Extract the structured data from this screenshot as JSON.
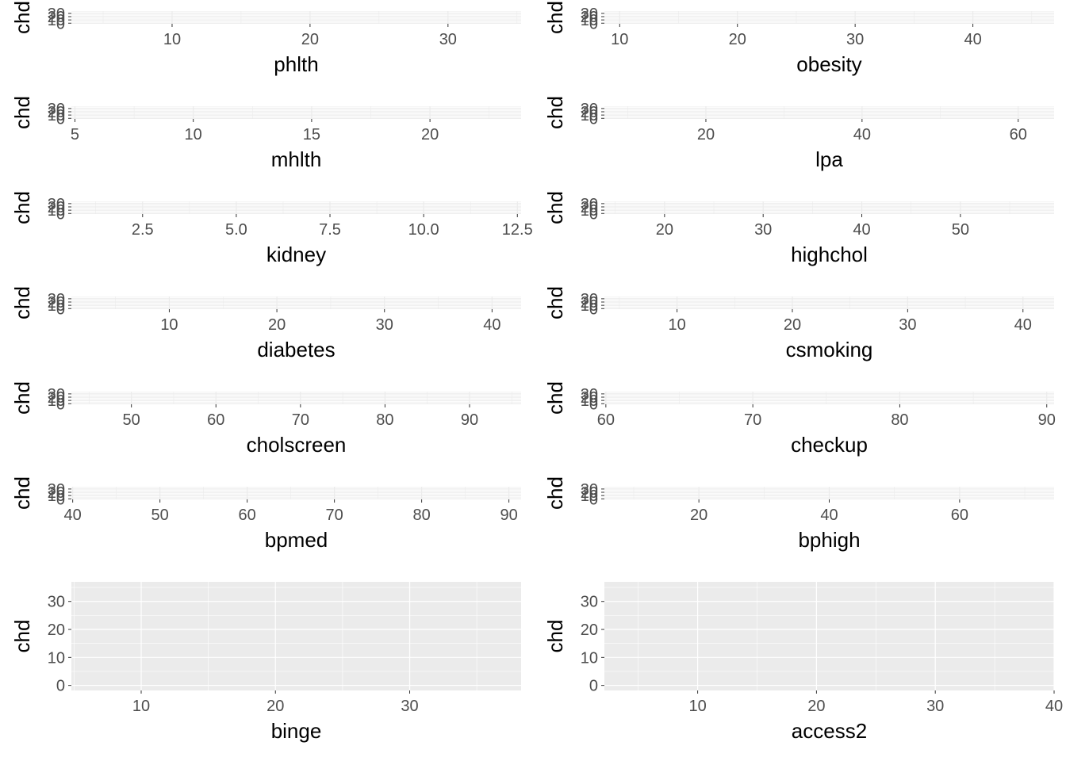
{
  "chart_data": [
    {
      "type": "scatter",
      "xlabel": "phlth",
      "ylabel": "chd",
      "xticks": [
        10,
        20,
        30
      ],
      "xlim": [
        2.7,
        35.3
      ],
      "yticks": [
        0,
        10,
        20,
        30
      ],
      "ylim": [
        -1.8,
        37
      ],
      "panel_fill": "#ffffff",
      "points": []
    },
    {
      "type": "scatter",
      "xlabel": "obesity",
      "ylabel": "chd",
      "xticks": [
        10,
        20,
        30,
        40
      ],
      "xlim": [
        8.7,
        46.9
      ],
      "yticks": [
        0,
        10,
        20,
        30
      ],
      "ylim": [
        -1.8,
        37
      ],
      "panel_fill": "#ffffff",
      "points": []
    },
    {
      "type": "scatter",
      "xlabel": "mhlth",
      "ylabel": "chd",
      "xticks": [
        5,
        10,
        15,
        20
      ],
      "xlim": [
        4.85,
        23.85
      ],
      "yticks": [
        0,
        10,
        20,
        30
      ],
      "ylim": [
        -1.8,
        37
      ],
      "panel_fill": "#ffffff",
      "points": []
    },
    {
      "type": "scatter",
      "xlabel": "lpa",
      "ylabel": "chd",
      "xticks": [
        20,
        40,
        60
      ],
      "xlim": [
        7,
        64.6
      ],
      "yticks": [
        0,
        10,
        20,
        30
      ],
      "ylim": [
        -1.8,
        37
      ],
      "panel_fill": "#ffffff",
      "points": []
    },
    {
      "type": "scatter",
      "xlabel": "kidney",
      "ylabel": "chd",
      "xticks": [
        "2.5",
        "5.0",
        "7.5",
        "10.0",
        "12.5"
      ],
      "xtick_values": [
        2.5,
        5.0,
        7.5,
        10.0,
        12.5
      ],
      "xlim": [
        0.6,
        12.6
      ],
      "yticks": [
        0,
        10,
        20,
        30
      ],
      "ylim": [
        -1.8,
        37
      ],
      "panel_fill": "#ffffff",
      "points": []
    },
    {
      "type": "scatter",
      "xlabel": "highchol",
      "ylabel": "chd",
      "xticks": [
        20,
        30,
        40,
        50
      ],
      "xlim": [
        13.9,
        59.5
      ],
      "yticks": [
        0,
        10,
        20,
        30
      ],
      "ylim": [
        -1.8,
        37
      ],
      "panel_fill": "#ffffff",
      "points": []
    },
    {
      "type": "scatter",
      "xlabel": "diabetes",
      "ylabel": "chd",
      "xticks": [
        10,
        20,
        30,
        40
      ],
      "xlim": [
        0.9,
        42.7
      ],
      "yticks": [
        0,
        10,
        20,
        30
      ],
      "ylim": [
        -1.8,
        37
      ],
      "panel_fill": "#ffffff",
      "points": []
    },
    {
      "type": "scatter",
      "xlabel": "csmoking",
      "ylabel": "chd",
      "xticks": [
        10,
        20,
        30,
        40
      ],
      "xlim": [
        3.7,
        42.7
      ],
      "yticks": [
        0,
        10,
        20,
        30
      ],
      "ylim": [
        -1.8,
        37
      ],
      "panel_fill": "#ffffff",
      "points": []
    },
    {
      "type": "scatter",
      "xlabel": "cholscreen",
      "ylabel": "chd",
      "xticks": [
        50,
        60,
        70,
        80,
        90
      ],
      "xlim": [
        42.9,
        96.1
      ],
      "yticks": [
        0,
        10,
        20,
        30
      ],
      "ylim": [
        -1.8,
        37
      ],
      "panel_fill": "#ffffff",
      "points": []
    },
    {
      "type": "scatter",
      "xlabel": "checkup",
      "ylabel": "chd",
      "xticks": [
        60,
        70,
        80,
        90
      ],
      "xlim": [
        59.9,
        90.5
      ],
      "yticks": [
        0,
        10,
        20,
        30
      ],
      "ylim": [
        -1.8,
        37
      ],
      "panel_fill": "#ffffff",
      "points": []
    },
    {
      "type": "scatter",
      "xlabel": "bpmed",
      "ylabel": "chd",
      "xticks": [
        40,
        50,
        60,
        70,
        80,
        90
      ],
      "xlim": [
        39.85,
        91.4
      ],
      "yticks": [
        0,
        10,
        20,
        30
      ],
      "ylim": [
        -1.8,
        37
      ],
      "panel_fill": "#ffffff",
      "points": []
    },
    {
      "type": "scatter",
      "xlabel": "bphigh",
      "ylabel": "chd",
      "xticks": [
        20,
        40,
        60
      ],
      "xlim": [
        5.5,
        74.5
      ],
      "yticks": [
        0,
        10,
        20,
        30
      ],
      "ylim": [
        -1.8,
        37
      ],
      "panel_fill": "#ffffff",
      "points": []
    },
    {
      "type": "scatter",
      "xlabel": "binge",
      "ylabel": "chd",
      "xticks": [
        10,
        20,
        30
      ],
      "xlim": [
        4.8,
        38.3
      ],
      "yticks": [
        0,
        10,
        20,
        30
      ],
      "ylim": [
        -1.8,
        37
      ],
      "panel_fill": "#ebebeb",
      "points": []
    },
    {
      "type": "scatter",
      "xlabel": "access2",
      "ylabel": "chd",
      "xticks": [
        10,
        20,
        30,
        40
      ],
      "xlim": [
        2.15,
        40
      ],
      "yticks": [
        0,
        10,
        20,
        30
      ],
      "ylim": [
        -1.8,
        37
      ],
      "panel_fill": "#ebebeb",
      "points": []
    }
  ],
  "colors": {
    "panel_background": "#ebebeb",
    "gridline": "#ffffff",
    "tick_text": "#4d4d4d",
    "axis_title": "#000000"
  }
}
